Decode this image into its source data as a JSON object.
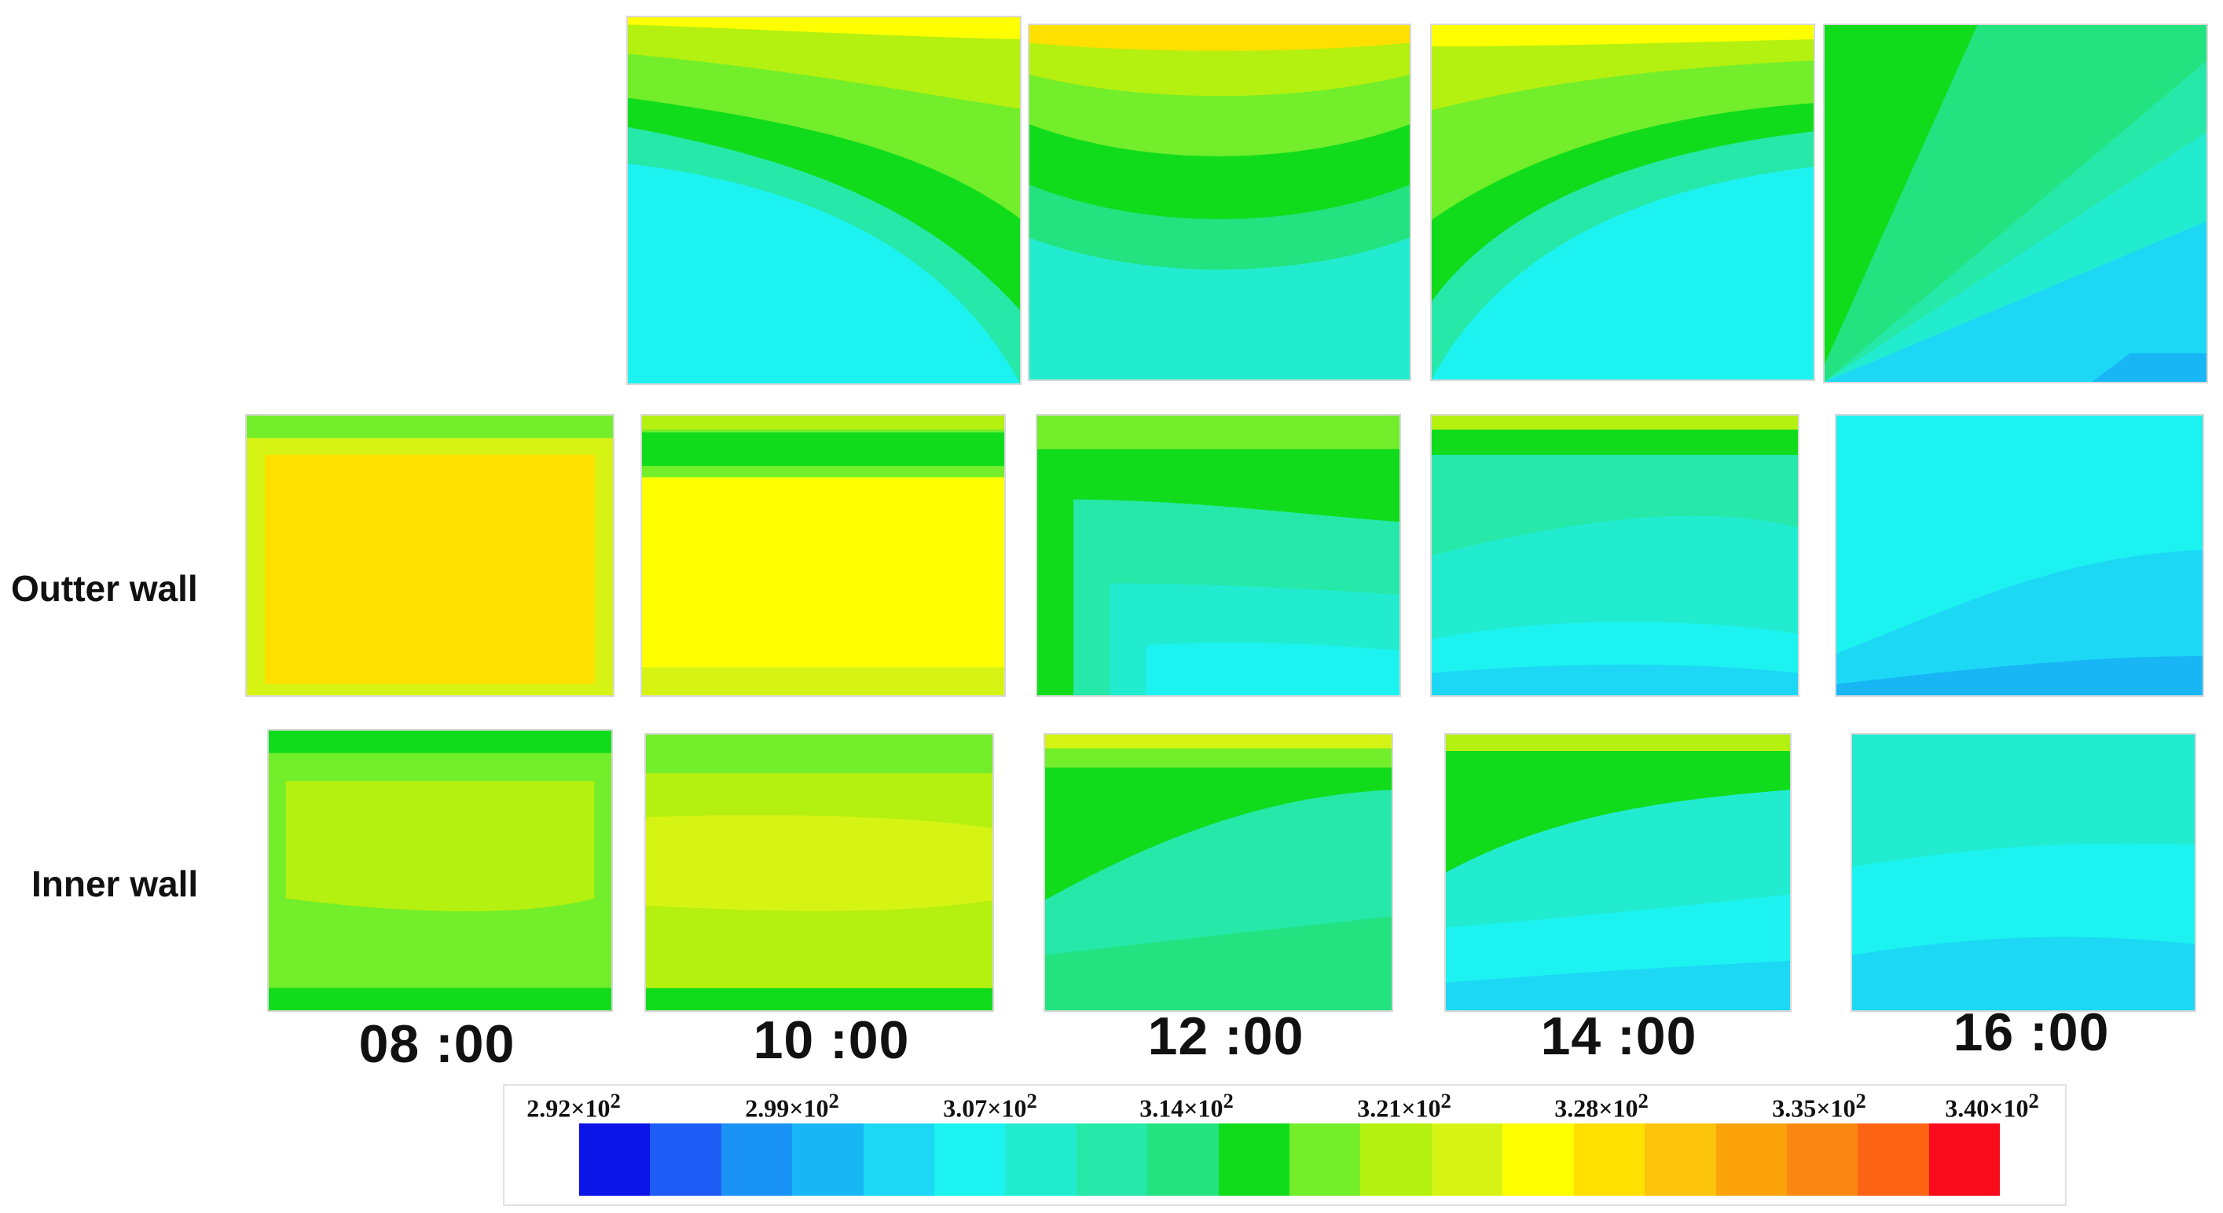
{
  "row_labels": {
    "outer": "Outter wall",
    "inner": "Inner wall"
  },
  "times": [
    "08 :00",
    "10 :00",
    "12 :00",
    "14 :00",
    "16 :00"
  ],
  "colorbar": {
    "ticks": [
      "2.92",
      "2.99",
      "3.07",
      "3.14",
      "3.21",
      "3.28",
      "3.35",
      "3.40"
    ],
    "multiplier": "×10",
    "exponent": "2",
    "colors": [
      "#0a14e6",
      "#1e5cf5",
      "#1992f5",
      "#18b6f5",
      "#1cd8f5",
      "#1cf3f0",
      "#22ecd0",
      "#26e8a8",
      "#22e380",
      "#10dc1c",
      "#72ee2a",
      "#b4f010",
      "#d6f414",
      "#ffff00",
      "#ffe000",
      "#fcc40c",
      "#fca30c",
      "#fc8814",
      "#fc6414",
      "#f80c1c"
    ]
  }
}
